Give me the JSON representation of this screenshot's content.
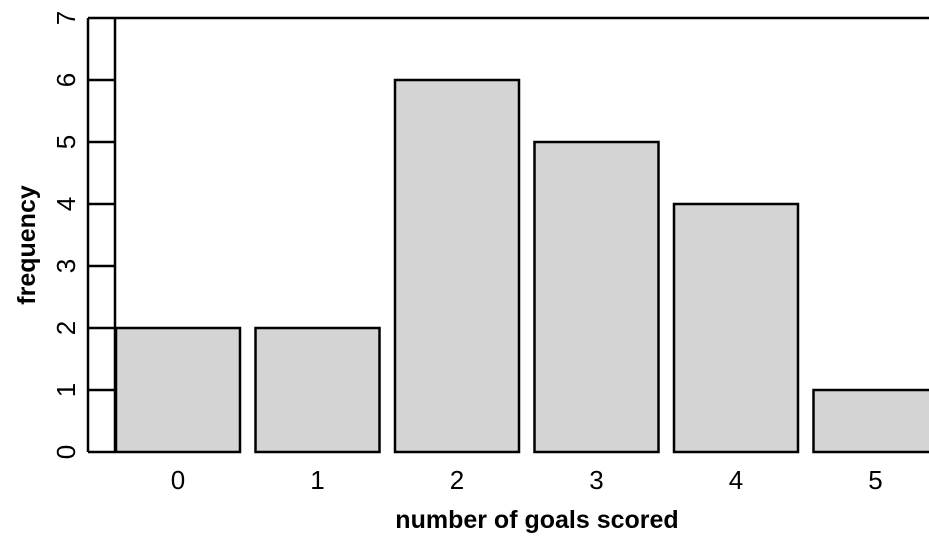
{
  "chart_data": {
    "type": "bar",
    "title": "",
    "xlabel": "number of goals scored",
    "ylabel": "frequency",
    "categories": [
      "0",
      "1",
      "2",
      "3",
      "4",
      "5"
    ],
    "values": [
      2,
      2,
      6,
      5,
      4,
      1
    ],
    "ylim": [
      0,
      7
    ],
    "yticks": [
      "0",
      "1",
      "2",
      "3",
      "4",
      "5",
      "6",
      "7"
    ],
    "grid": false,
    "legend": "none",
    "colors": {
      "bar_fill": "#d4d4d4",
      "bar_stroke": "#000000"
    }
  }
}
